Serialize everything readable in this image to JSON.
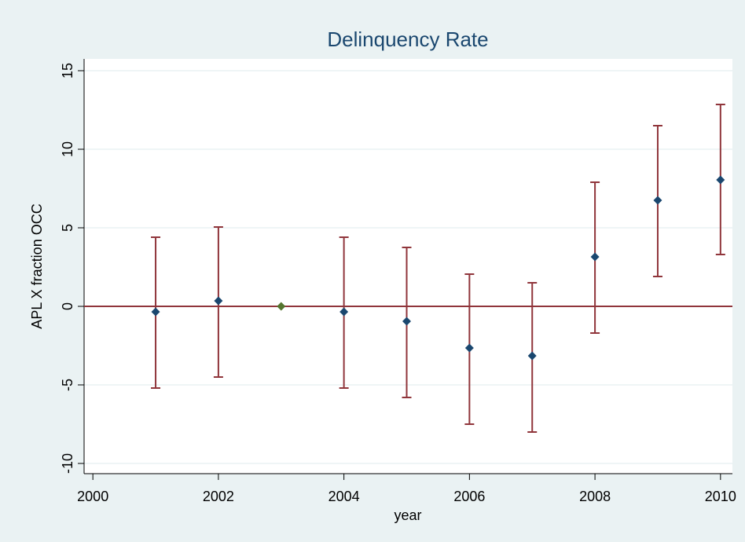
{
  "chart_data": {
    "type": "errorbar",
    "title": "Delinquency Rate",
    "x_label": "year",
    "y_label": "APL X fraction OCC",
    "x": [
      2001,
      2002,
      2003,
      2004,
      2005,
      2006,
      2007,
      2008,
      2009,
      2010
    ],
    "values": [
      -0.35,
      0.35,
      0,
      -0.35,
      -0.95,
      -2.65,
      -3.15,
      3.15,
      6.75,
      8.05
    ],
    "lower": [
      -5.2,
      -4.5,
      null,
      -5.2,
      -5.8,
      -7.5,
      -8.0,
      -1.7,
      1.9,
      3.3
    ],
    "upper": [
      4.4,
      5.05,
      null,
      4.4,
      3.75,
      2.05,
      1.5,
      7.9,
      11.5,
      12.85
    ],
    "colors": [
      "#1a476f",
      "#1a476f",
      "#55752f",
      "#1a476f",
      "#1a476f",
      "#1a476f",
      "#1a476f",
      "#1a476f",
      "#1a476f",
      "#1a476f"
    ],
    "errorbar_color": "#90353b",
    "hline": 0,
    "hline_color": "#90353b",
    "xlim": [
      1999.86,
      2010.19
    ],
    "xticks": [
      2000,
      2002,
      2004,
      2006,
      2008,
      2010
    ],
    "ylim": [
      -10.65,
      15.75
    ],
    "yticks": [
      -10,
      -5,
      0,
      5,
      10,
      15
    ],
    "grid": true
  }
}
